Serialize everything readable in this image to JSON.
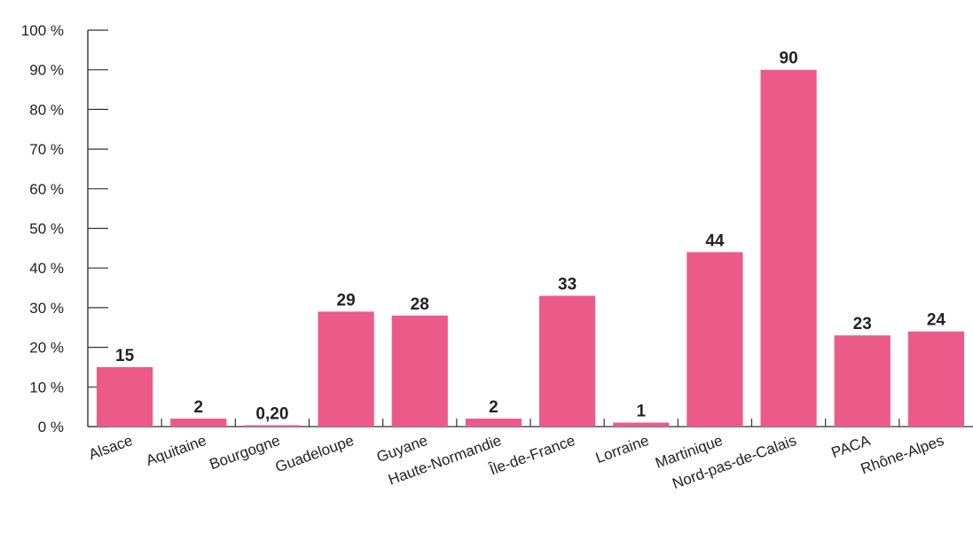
{
  "chart_data": {
    "type": "bar",
    "categories": [
      "Alsace",
      "Aquitaine",
      "Bourgogne",
      "Guadeloupe",
      "Guyane",
      "Haute-Normandie",
      "Île-de-France",
      "Lorraine",
      "Martinique",
      "Nord-pas-de-Calais",
      "PACA",
      "Rhône-Alpes"
    ],
    "values": [
      15,
      2,
      0.2,
      29,
      28,
      2,
      33,
      1,
      44,
      90,
      23,
      24
    ],
    "data_labels": [
      "15",
      "2",
      "0,20",
      "29",
      "28",
      "2",
      "33",
      "1",
      "44",
      "90",
      "23",
      "24"
    ],
    "y_tick_labels": [
      "0 %",
      "10 %",
      "20 %",
      "30 %",
      "40 %",
      "50 %",
      "60 %",
      "70 %",
      "80 %",
      "90 %",
      "100 %"
    ],
    "ylim": [
      0,
      100
    ],
    "bar_color": "#ec5a8a",
    "axis_color": "#333333",
    "grid": false,
    "legend": "none"
  }
}
